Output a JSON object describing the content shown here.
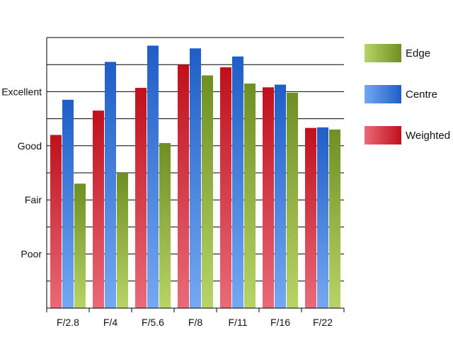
{
  "chart_data": {
    "type": "bar",
    "title": "",
    "xlabel": "",
    "ylabel": "",
    "categories": [
      "F/2.8",
      "F/4",
      "F/5.6",
      "F/8",
      "F/11",
      "F/16",
      "F/22"
    ],
    "y_ticks": [
      {
        "label": "Poor",
        "value": 1
      },
      {
        "label": "Fair",
        "value": 2
      },
      {
        "label": "Good",
        "value": 3
      },
      {
        "label": "Excellent",
        "value": 4
      }
    ],
    "ylim": [
      0,
      5
    ],
    "grid": true,
    "legend_position": "right",
    "series": [
      {
        "name": "Weighted",
        "color": "#c0101c",
        "color_light": "#ea6a78",
        "values": [
          3.2,
          3.65,
          4.07,
          4.5,
          4.45,
          4.08,
          3.33
        ]
      },
      {
        "name": "Centre",
        "color": "#1f5ec8",
        "color_light": "#74a8f2",
        "values": [
          3.85,
          4.55,
          4.85,
          4.8,
          4.65,
          4.13,
          3.34
        ]
      },
      {
        "name": "Edge",
        "color": "#6f8f22",
        "color_light": "#b8d466",
        "values": [
          2.3,
          2.5,
          3.05,
          4.3,
          4.15,
          3.98,
          3.3
        ]
      }
    ],
    "legend_order": [
      "Edge",
      "Centre",
      "Weighted"
    ]
  }
}
